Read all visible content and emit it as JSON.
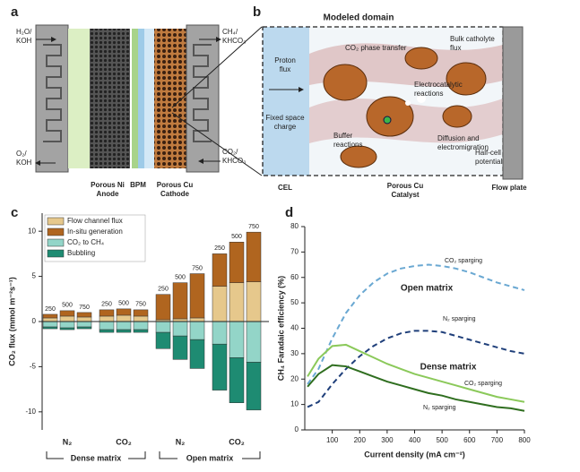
{
  "panel_labels": [
    "a",
    "b",
    "c",
    "d"
  ],
  "diagram_a": {
    "inlets": [
      [
        "H₂O/",
        "KOH"
      ],
      [
        "O₂/",
        "KOH"
      ],
      [
        "CH₄/",
        "KHCO₃"
      ],
      [
        "CO₂/",
        "KHCO₃"
      ]
    ],
    "labels": [
      [
        "Porous Ni",
        "Anode"
      ],
      [
        "BPM"
      ],
      [
        "Porous Cu",
        "Cathode"
      ]
    ]
  },
  "diagram_b": {
    "title": "Modeled domain",
    "labels": [
      [
        "Proton",
        "flux"
      ],
      [
        "Fixed space",
        "charge"
      ],
      [
        "CO₂ phase transfer"
      ],
      [
        "Bulk catholyte",
        "flux"
      ],
      [
        "Electrocatalytic",
        "reactions"
      ],
      [
        "Buffer",
        "reactions"
      ],
      [
        "Diffusion and",
        "electromigration"
      ],
      [
        "Half-cell",
        "potential"
      ]
    ],
    "footer": [
      [
        "CEL"
      ],
      [
        "Porous Cu",
        "Catalyst"
      ],
      [
        "Flow plate"
      ]
    ]
  },
  "chart_data": [
    {
      "type": "bar",
      "stacked": true,
      "ylabel": "CO₂ flux (mmol m⁻²s⁻¹)",
      "categories": [
        "250",
        "500",
        "750",
        "250",
        "500",
        "750",
        "250",
        "500",
        "750",
        "250",
        "500",
        "750"
      ],
      "groups": [
        "N₂",
        "CO₂",
        "N₂",
        "CO₂"
      ],
      "supergroups": [
        "Dense matrix",
        "Open matrix"
      ],
      "series": [
        {
          "name": "Flow channel flux",
          "color": "#e6c88c",
          "values": [
            0.4,
            0.6,
            0.5,
            0.6,
            0.7,
            0.6,
            0.2,
            0.3,
            0.4,
            3.9,
            4.3,
            4.4
          ]
        },
        {
          "name": "In-situ generation",
          "color": "#b0651f",
          "values": [
            0.4,
            0.6,
            0.5,
            0.7,
            0.7,
            0.7,
            2.8,
            4.0,
            4.9,
            3.6,
            4.5,
            5.5
          ]
        },
        {
          "name": "CO₂ to CH₄",
          "color": "#93d5c8",
          "values": [
            -0.6,
            -0.7,
            -0.6,
            -0.9,
            -0.9,
            -0.9,
            -1.2,
            -1.6,
            -2.0,
            -2.5,
            -4.0,
            -4.5
          ]
        },
        {
          "name": "Bubbling",
          "color": "#1e8b72",
          "values": [
            -0.2,
            -0.2,
            -0.2,
            -0.3,
            -0.3,
            -0.3,
            -1.8,
            -2.6,
            -3.2,
            -5.1,
            -5.0,
            -5.3
          ]
        }
      ],
      "ylim": [
        -12,
        12
      ],
      "yticks": [
        -10,
        -5,
        0,
        5,
        10
      ]
    },
    {
      "type": "line",
      "xlabel": "Current density (mA cm⁻²)",
      "ylabel": "CH₄ Faradaic efficiency (%)",
      "annotations": [
        "Open matrix",
        "Dense matrix"
      ],
      "x": [
        10,
        50,
        100,
        150,
        200,
        250,
        300,
        350,
        400,
        450,
        500,
        550,
        600,
        650,
        700,
        750,
        800
      ],
      "series": [
        {
          "name": "CO₂ sparging",
          "color": "#6aa8d2",
          "dashed": true,
          "values": [
            18,
            24,
            36,
            46,
            53,
            58,
            61.5,
            63.5,
            64.5,
            65,
            64.5,
            63.5,
            62,
            60,
            58,
            56.5,
            55
          ]
        },
        {
          "name": "N₂ sparging",
          "color": "#1f3f7a",
          "dashed": true,
          "values": [
            9,
            11,
            18,
            24,
            29,
            33,
            36,
            38,
            39,
            39,
            38.5,
            37,
            35.5,
            34,
            32.5,
            31,
            30
          ]
        },
        {
          "name": "CO₂ sparging",
          "color": "#8bc95a",
          "dashed": false,
          "values": [
            21,
            28,
            33,
            33.5,
            31,
            28.5,
            26,
            24,
            22,
            20.5,
            19,
            17.5,
            16,
            14.5,
            13,
            12,
            11
          ]
        },
        {
          "name": "N₂ sparging",
          "color": "#2f6e1f",
          "dashed": false,
          "values": [
            17,
            22,
            25.5,
            25,
            23,
            21,
            19,
            17.5,
            16,
            14.5,
            13.5,
            12,
            11,
            10,
            9,
            8.5,
            7.5
          ]
        }
      ],
      "xlim": [
        0,
        800
      ],
      "xticks": [
        100,
        200,
        300,
        400,
        500,
        600,
        700,
        800
      ],
      "ylim": [
        0,
        80
      ],
      "yticks": [
        0,
        10,
        20,
        30,
        40,
        50,
        60,
        70,
        80
      ]
    }
  ]
}
